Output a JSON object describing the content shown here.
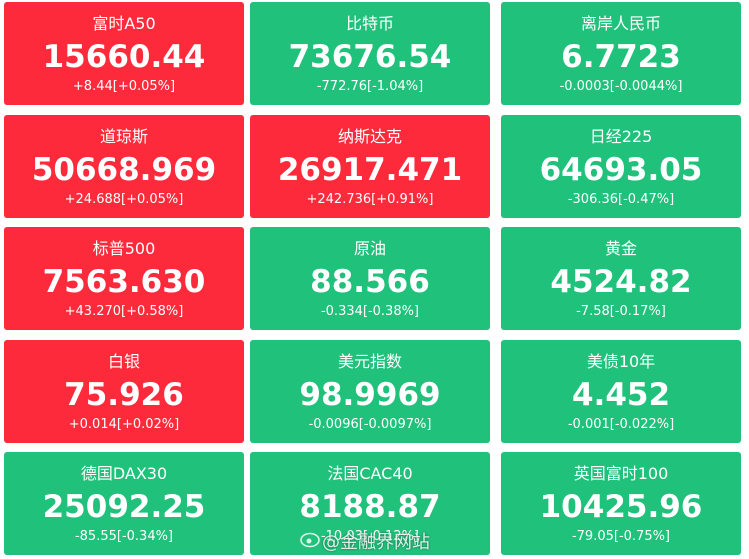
{
  "tiles": [
    {
      "name": "富时A50",
      "value": "15660.44",
      "change": "+8.44[+0.05%]",
      "color": "#fc2a3b"
    },
    {
      "name": "比特币",
      "value": "73676.54",
      "change": "-772.76[-1.04%]",
      "color": "#1fc17b"
    },
    {
      "name": "离岸人民币",
      "value": "6.7723",
      "change": "-0.0003[-0.0044%]",
      "color": "#1fc17b"
    },
    {
      "name": "道琼斯",
      "value": "50668.969",
      "change": "+24.688[+0.05%]",
      "color": "#fc2a3b"
    },
    {
      "name": "纳斯达克",
      "value": "26917.471",
      "change": "+242.736[+0.91%]",
      "color": "#fc2a3b"
    },
    {
      "name": "日经225",
      "value": "64693.05",
      "change": "-306.36[-0.47%]",
      "color": "#1fc17b"
    },
    {
      "name": "标普500",
      "value": "7563.630",
      "change": "+43.270[+0.58%]",
      "color": "#fc2a3b"
    },
    {
      "name": "原油",
      "value": "88.566",
      "change": "-0.334[-0.38%]",
      "color": "#1fc17b"
    },
    {
      "name": "黄金",
      "value": "4524.82",
      "change": "-7.58[-0.17%]",
      "color": "#1fc17b"
    },
    {
      "name": "白银",
      "value": "75.926",
      "change": "+0.014[+0.02%]",
      "color": "#fc2a3b"
    },
    {
      "name": "美元指数",
      "value": "98.9969",
      "change": "-0.0096[-0.0097%]",
      "color": "#1fc17b"
    },
    {
      "name": "美债10年",
      "value": "4.452",
      "change": "-0.001[-0.022%]",
      "color": "#1fc17b"
    },
    {
      "name": "德国DAX30",
      "value": "25092.25",
      "change": "-85.55[-0.34%]",
      "color": "#1fc17b"
    },
    {
      "name": "法国CAC40",
      "value": "8188.87",
      "change": "-10.03[-0.12%]",
      "color": "#1fc17b"
    },
    {
      "name": "英国富时100",
      "value": "10425.96",
      "change": "-79.05[-0.75%]",
      "color": "#1fc17b"
    }
  ],
  "watermark": "@金融界网站"
}
